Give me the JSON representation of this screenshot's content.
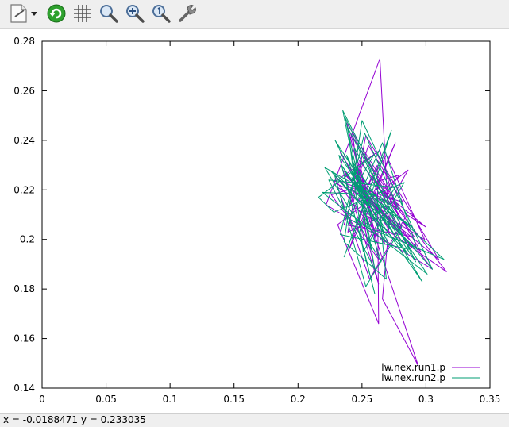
{
  "toolbar": {
    "buttons": [
      {
        "name": "export-menu-button",
        "icon": "document-export-icon"
      },
      {
        "name": "replot-button",
        "icon": "refresh-icon"
      },
      {
        "name": "grid-button",
        "icon": "grid-icon"
      },
      {
        "name": "unzoom-button",
        "icon": "zoom-out-icon"
      },
      {
        "name": "zoom-in-button",
        "icon": "zoom-in-icon"
      },
      {
        "name": "zoom-reset-button",
        "icon": "zoom-original-icon"
      },
      {
        "name": "settings-button",
        "icon": "wrench-icon"
      }
    ]
  },
  "status": {
    "text": "x = -0.0188471 y = 0.233035"
  },
  "colors": {
    "series1": "#9400d3",
    "series2": "#009e73"
  },
  "chart_data": {
    "type": "line",
    "title": "",
    "xlabel": "",
    "ylabel": "",
    "xlim": [
      0,
      0.35
    ],
    "ylim": [
      0.14,
      0.28
    ],
    "xticks": [
      "0",
      "0.05",
      "0.1",
      "0.15",
      "0.2",
      "0.25",
      "0.3",
      "0.35"
    ],
    "yticks": [
      "0.14",
      "0.16",
      "0.18",
      "0.2",
      "0.22",
      "0.24",
      "0.26",
      "0.28"
    ],
    "grid": false,
    "legend_position": "bottom-right",
    "series": [
      {
        "name": "lw.nex.run1.p",
        "x": [
          0.262,
          0.25,
          0.275,
          0.243,
          0.268,
          0.229,
          0.282,
          0.255,
          0.236,
          0.291,
          0.248,
          0.263,
          0.226,
          0.279,
          0.258,
          0.241,
          0.296,
          0.252,
          0.233,
          0.271,
          0.264,
          0.222,
          0.305,
          0.247,
          0.261,
          0.238,
          0.284,
          0.256,
          0.231,
          0.299,
          0.269,
          0.244,
          0.316,
          0.259,
          0.24,
          0.276,
          0.251,
          0.263,
          0.235,
          0.289,
          0.257,
          0.228,
          0.264,
          0.281,
          0.246,
          0.31,
          0.253,
          0.239,
          0.272,
          0.266,
          0.294,
          0.25,
          0.262,
          0.263,
          0.231,
          0.286,
          0.254,
          0.243,
          0.278,
          0.26,
          0.3,
          0.237,
          0.265
        ],
        "y": [
          0.212,
          0.221,
          0.205,
          0.229,
          0.198,
          0.224,
          0.215,
          0.238,
          0.206,
          0.201,
          0.232,
          0.192,
          0.218,
          0.226,
          0.209,
          0.243,
          0.195,
          0.219,
          0.235,
          0.204,
          0.273,
          0.214,
          0.188,
          0.227,
          0.201,
          0.247,
          0.209,
          0.184,
          0.221,
          0.2,
          0.234,
          0.213,
          0.187,
          0.225,
          0.196,
          0.239,
          0.207,
          0.182,
          0.228,
          0.197,
          0.216,
          0.223,
          0.236,
          0.204,
          0.219,
          0.192,
          0.242,
          0.203,
          0.211,
          0.176,
          0.149,
          0.217,
          0.23,
          0.166,
          0.206,
          0.228,
          0.199,
          0.241,
          0.213,
          0.222,
          0.205,
          0.226,
          0.211
        ]
      },
      {
        "name": "lw.nex.run2.p",
        "x": [
          0.258,
          0.246,
          0.27,
          0.238,
          0.265,
          0.221,
          0.279,
          0.252,
          0.233,
          0.287,
          0.244,
          0.26,
          0.224,
          0.276,
          0.255,
          0.237,
          0.292,
          0.249,
          0.229,
          0.268,
          0.261,
          0.219,
          0.301,
          0.243,
          0.257,
          0.235,
          0.281,
          0.253,
          0.228,
          0.293,
          0.266,
          0.24,
          0.314,
          0.256,
          0.236,
          0.273,
          0.248,
          0.26,
          0.232,
          0.286,
          0.254,
          0.225,
          0.271,
          0.278,
          0.242,
          0.305,
          0.25,
          0.236,
          0.269,
          0.263,
          0.289,
          0.246,
          0.259,
          0.216,
          0.228,
          0.283,
          0.251,
          0.239,
          0.275,
          0.257,
          0.297,
          0.234,
          0.262
        ],
        "y": [
          0.208,
          0.226,
          0.199,
          0.234,
          0.191,
          0.229,
          0.212,
          0.243,
          0.202,
          0.196,
          0.237,
          0.188,
          0.224,
          0.221,
          0.205,
          0.249,
          0.191,
          0.224,
          0.24,
          0.199,
          0.218,
          0.219,
          0.186,
          0.231,
          0.196,
          0.252,
          0.205,
          0.181,
          0.227,
          0.196,
          0.239,
          0.208,
          0.192,
          0.22,
          0.193,
          0.244,
          0.203,
          0.178,
          0.234,
          0.194,
          0.212,
          0.228,
          0.201,
          0.2,
          0.225,
          0.188,
          0.248,
          0.199,
          0.184,
          0.214,
          0.205,
          0.222,
          0.234,
          0.217,
          0.211,
          0.223,
          0.195,
          0.245,
          0.209,
          0.218,
          0.183,
          0.23,
          0.207
        ]
      }
    ]
  }
}
